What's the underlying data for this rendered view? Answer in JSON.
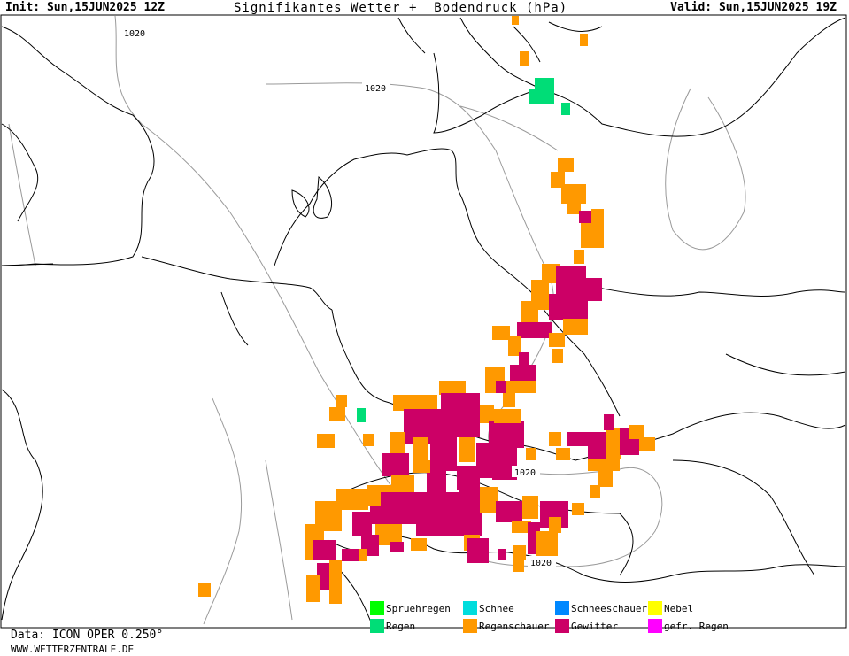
{
  "header": {
    "init": "Init: Sun,15JUN2025 12Z",
    "title": "Signifikantes Wetter +  Bodendruck (hPa)",
    "valid": "Valid: Sun,15JUN2025 19Z"
  },
  "isobar_labels": [
    "1020",
    "1020",
    "1020",
    "1020"
  ],
  "legend": [
    {
      "label": "Spruehregen",
      "color": "#00ff00"
    },
    {
      "label": "Regen",
      "color": "#00dd77"
    },
    {
      "label": "Schnee",
      "color": "#00dddd"
    },
    {
      "label": "Regenschauer",
      "color": "#ff9900"
    },
    {
      "label": "Schneeschauer",
      "color": "#0088ff"
    },
    {
      "label": "Gewitter",
      "color": "#cc0066"
    },
    {
      "label": "Nebel",
      "color": "#ffff00"
    },
    {
      "label": "gefr. Regen",
      "color": "#ff00ff"
    }
  ],
  "footer": {
    "data_source": "Data: ICON OPER 0.250°",
    "website": "WWW.WETTERZENTRALE.DE"
  }
}
